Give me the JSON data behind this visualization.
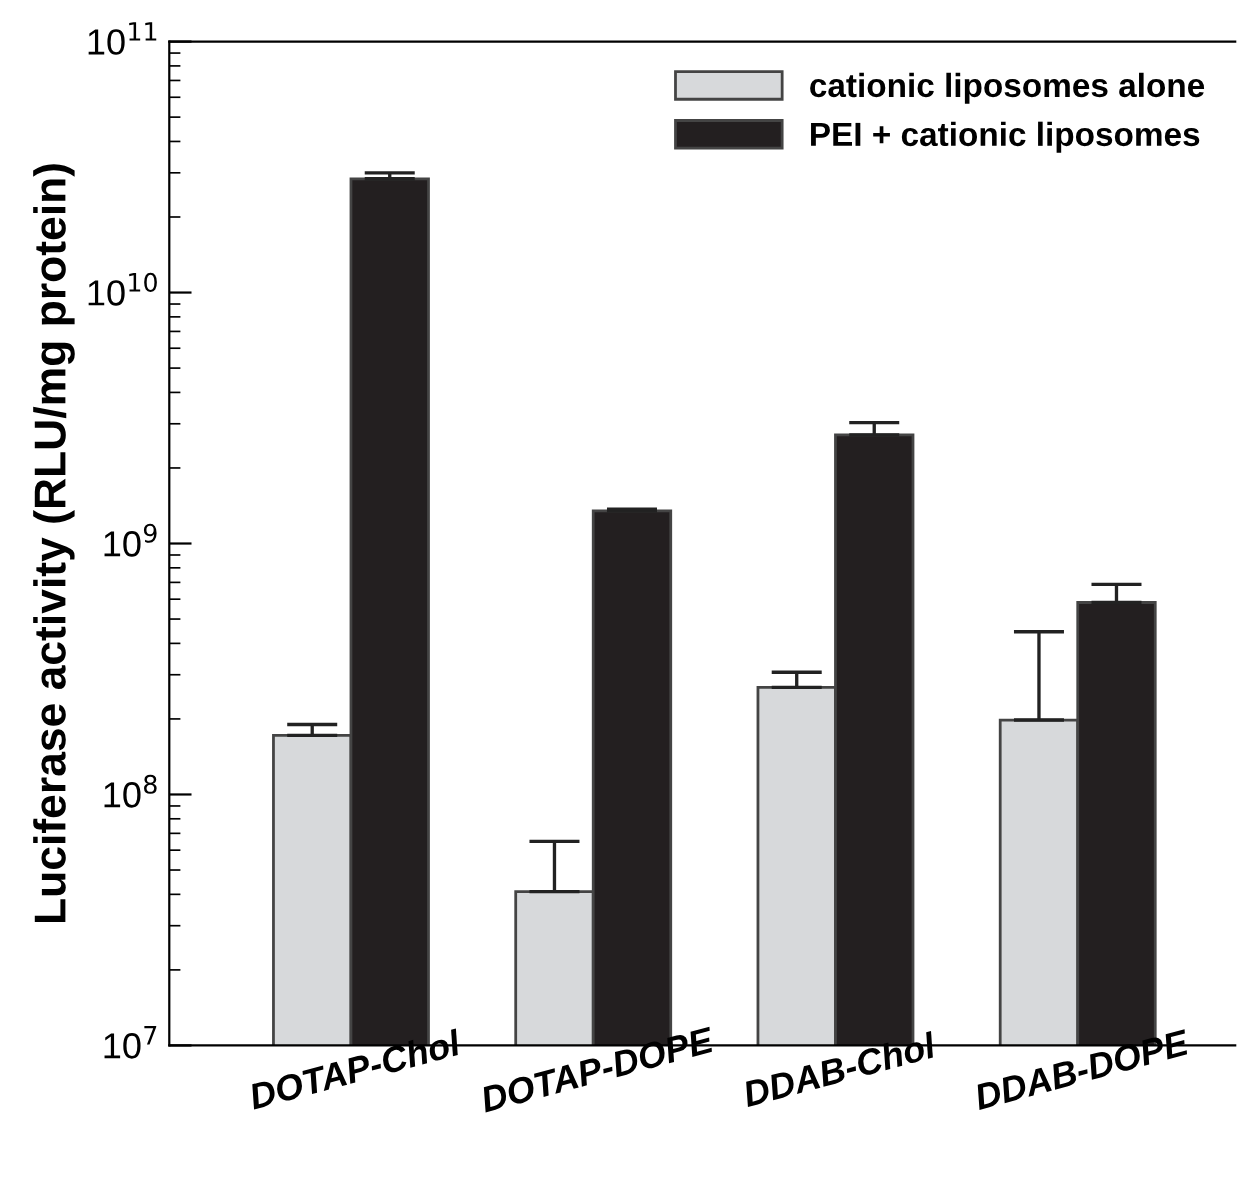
{
  "chart_data": {
    "type": "bar",
    "ylabel": "Luciferase activity (RLU/mg protein)",
    "categories": [
      "DOTAP-Chol",
      "DOTAP-DOPE",
      "DDAB-Chol",
      "DDAB-DOPE"
    ],
    "series": [
      {
        "name": "cationic liposomes alone",
        "color": "#d7d9db",
        "values": [
          172000000,
          41000000,
          267000000,
          198000000
        ],
        "errors": [
          [
            172000000,
            190000000
          ],
          [
            41000000,
            65000000
          ],
          [
            267000000,
            307000000
          ],
          [
            198000000,
            445000000
          ]
        ]
      },
      {
        "name": "PEI + cationic liposomes",
        "color": "#231f20",
        "values": [
          28400000000,
          1350000000,
          2710000000,
          582000000
        ],
        "errors": [
          [
            28400000000,
            30000000000
          ],
          [
            1350000000,
            1370000000
          ],
          [
            2710000000,
            3030000000
          ],
          [
            582000000,
            687000000
          ]
        ]
      }
    ],
    "log": true,
    "ylim": [
      10000000,
      100000000000
    ],
    "yticks": [
      {
        "value": 10000000,
        "label": "10$^{7}$"
      },
      {
        "value": 100000000,
        "label": "10$^{8}$"
      },
      {
        "value": 1000000000,
        "label": "10$^{9}$"
      },
      {
        "value": 10000000000,
        "label": "10$^{10}$"
      },
      {
        "value": 100000000000,
        "label": "10$^{11}$"
      }
    ],
    "grid": false,
    "legend": "top right"
  }
}
